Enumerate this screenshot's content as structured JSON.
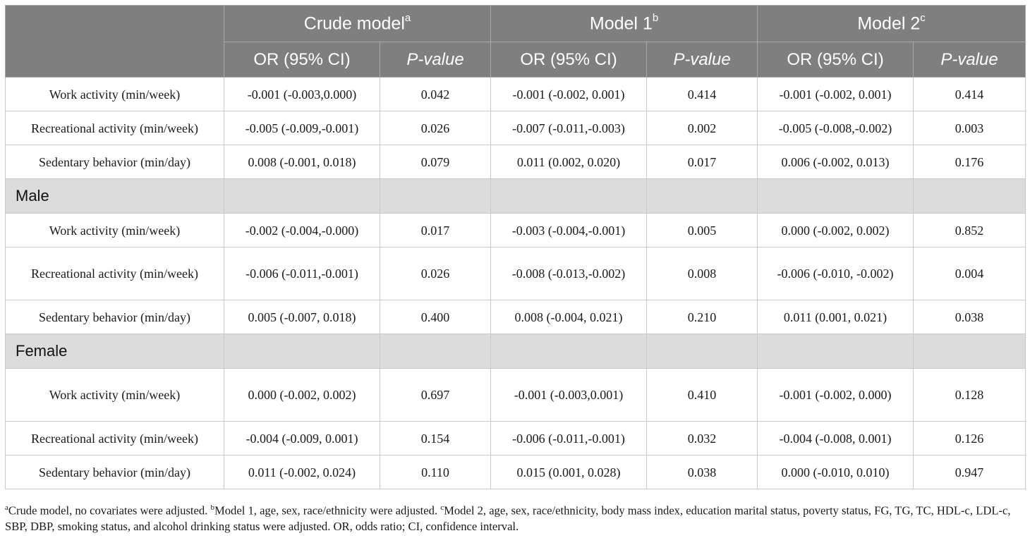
{
  "header": {
    "models": [
      {
        "label": "Crude model",
        "sup": "a"
      },
      {
        "label": "Model 1",
        "sup": "b"
      },
      {
        "label": "Model 2",
        "sup": "c"
      }
    ],
    "or_label": "OR (95% CI)",
    "p_label": "P-value"
  },
  "rows_all": [
    {
      "label": "Work activity (min/week)",
      "c_or": "-0.001 (-0.003,0.000)",
      "c_p": "0.042",
      "m1_or": "-0.001 (-0.002, 0.001)",
      "m1_p": "0.414",
      "m2_or": "-0.001 (-0.002, 0.001)",
      "m2_p": "0.414"
    },
    {
      "label": "Recreational activity (min/week)",
      "c_or": "-0.005 (-0.009,-0.001)",
      "c_p": "0.026",
      "m1_or": "-0.007 (-0.011,-0.003)",
      "m1_p": "0.002",
      "m2_or": "-0.005 (-0.008,-0.002)",
      "m2_p": "0.003"
    },
    {
      "label": "Sedentary behavior (min/day)",
      "c_or": "0.008 (-0.001, 0.018)",
      "c_p": "0.079",
      "m1_or": "0.011 (0.002, 0.020)",
      "m1_p": "0.017",
      "m2_or": "0.006 (-0.002, 0.013)",
      "m2_p": "0.176"
    }
  ],
  "group_male": "Male",
  "rows_male": [
    {
      "label": "Work activity (min/week)",
      "c_or": "-0.002 (-0.004,-0.000)",
      "c_p": "0.017",
      "m1_or": "-0.003 (-0.004,-0.001)",
      "m1_p": "0.005",
      "m2_or": "0.000 (-0.002, 0.002)",
      "m2_p": "0.852"
    },
    {
      "label": "Recreational activity (min/week)",
      "c_or": "-0.006 (-0.011,-0.001)",
      "c_p": "0.026",
      "m1_or": "-0.008 (-0.013,-0.002)",
      "m1_p": "0.008",
      "m2_or": "-0.006 (-0.010, -0.002)",
      "m2_p": "0.004"
    },
    {
      "label": "Sedentary behavior (min/day)",
      "c_or": "0.005 (-0.007, 0.018)",
      "c_p": "0.400",
      "m1_or": "0.008 (-0.004, 0.021)",
      "m1_p": "0.210",
      "m2_or": "0.011 (0.001, 0.021)",
      "m2_p": "0.038"
    }
  ],
  "group_female": "Female",
  "rows_female": [
    {
      "label": "Work activity (min/week)",
      "c_or": "0.000 (-0.002, 0.002)",
      "c_p": "0.697",
      "m1_or": "-0.001 (-0.003,0.001)",
      "m1_p": "0.410",
      "m2_or": "-0.001 (-0.002, 0.000)",
      "m2_p": "0.128"
    },
    {
      "label": "Recreational activity (min/week)",
      "c_or": "-0.004 (-0.009, 0.001)",
      "c_p": "0.154",
      "m1_or": "-0.006 (-0.011,-0.001)",
      "m1_p": "0.032",
      "m2_or": "-0.004 (-0.008, 0.001)",
      "m2_p": "0.126"
    },
    {
      "label": "Sedentary behavior (min/day)",
      "c_or": "0.011 (-0.002, 0.024)",
      "c_p": "0.110",
      "m1_or": "0.015 (0.001, 0.028)",
      "m1_p": "0.038",
      "m2_or": "0.000 (-0.010, 0.010)",
      "m2_p": "0.947"
    }
  ],
  "footnote": {
    "a_sup": "a",
    "a_text": "Crude model, no covariates were adjusted. ",
    "b_sup": "b",
    "b_text": "Model 1, age, sex, race/ethnicity were adjusted. ",
    "c_sup": "c",
    "c_text": "Model 2, age, sex, race/ethnicity, body mass index, education marital status, poverty status, FG, TG, TC, HDL-c, LDL-c, SBP, DBP, smoking status, and alcohol drinking status were adjusted. OR, odds ratio; CI, confidence interval."
  }
}
